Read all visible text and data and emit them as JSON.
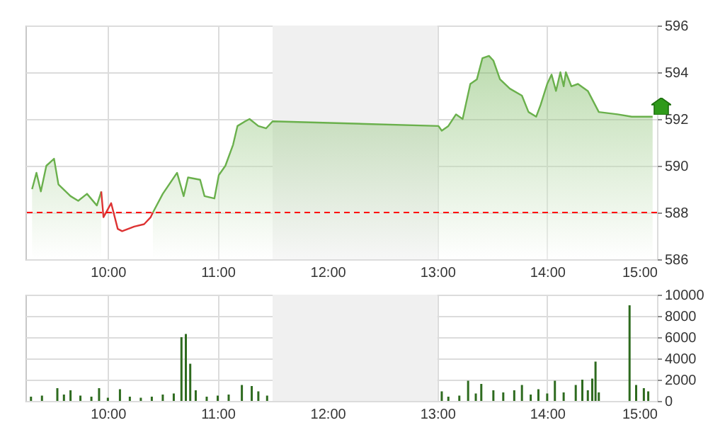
{
  "chart_data": [
    {
      "type": "line",
      "xlim": [
        9.25,
        15
      ],
      "xticks": [
        {
          "value": 10,
          "label": "10:00"
        },
        {
          "value": 11,
          "label": "11:00"
        },
        {
          "value": 12,
          "label": "12:00"
        },
        {
          "value": 13,
          "label": "13:00"
        },
        {
          "value": 14,
          "label": "14:00"
        },
        {
          "value": 15,
          "label": "15:00"
        }
      ],
      "ylim": [
        586,
        596
      ],
      "yticks": [
        586,
        588,
        590,
        592,
        594,
        596
      ],
      "grid": true,
      "bands": [
        {
          "axis": "x",
          "from": 11.5,
          "to": 13,
          "color": "#f0f0f0"
        }
      ],
      "ref_lines": [
        {
          "axis": "y",
          "value": 588,
          "color": "#ff0000",
          "line_style": "dashed"
        }
      ],
      "series": [
        {
          "type": "area",
          "color": "#6ab04c",
          "x": [
            9.31,
            9.35,
            9.39,
            9.44,
            9.51,
            9.55,
            9.66,
            9.73,
            9.81,
            9.9,
            9.94,
            10.0,
            10.41,
            10.5,
            10.63,
            10.69,
            10.73,
            10.84,
            10.88,
            10.97,
            11.01,
            11.07,
            11.14,
            11.18,
            11.25,
            11.29,
            11.37,
            11.44,
            11.5,
            13.01,
            13.04,
            13.1,
            13.17,
            13.23,
            13.3,
            13.36,
            13.41,
            13.47,
            13.51,
            13.57,
            13.66,
            13.77,
            13.83,
            13.9,
            13.94,
            14.0,
            14.04,
            14.08,
            14.12,
            14.15,
            14.17,
            14.22,
            14.28,
            14.37,
            14.47,
            14.64,
            14.77,
            14.88,
            14.96
          ],
          "values": [
            589.0,
            589.7,
            588.9,
            590.0,
            590.3,
            589.2,
            588.7,
            588.5,
            588.8,
            588.3,
            588.9,
            null,
            588.0,
            588.8,
            589.7,
            588.7,
            589.5,
            589.4,
            588.7,
            588.6,
            589.6,
            590.0,
            590.9,
            591.7,
            591.9,
            592.0,
            591.7,
            591.6,
            591.9,
            591.7,
            591.5,
            591.7,
            592.2,
            592.0,
            593.5,
            593.7,
            594.6,
            594.7,
            594.5,
            593.7,
            593.3,
            593.0,
            592.3,
            592.1,
            592.6,
            593.5,
            593.9,
            593.2,
            594.0,
            593.4,
            594.0,
            593.4,
            593.5,
            593.2,
            592.3,
            592.2,
            592.1,
            592.1,
            592.1
          ]
        },
        {
          "color": "#dd3333",
          "x": [
            9.94,
            9.96,
            10.03,
            10.09,
            10.13,
            10.24,
            10.33,
            10.39,
            10.41
          ],
          "values": [
            588.9,
            587.8,
            588.4,
            587.3,
            587.2,
            587.4,
            587.5,
            587.8,
            588.0
          ]
        }
      ]
    },
    {
      "type": "bar",
      "xlim": [
        9.25,
        15
      ],
      "xticks": [
        {
          "value": 10,
          "label": "10:00"
        },
        {
          "value": 11,
          "label": "11:00"
        },
        {
          "value": 12,
          "label": "12:00"
        },
        {
          "value": 13,
          "label": "13:00"
        },
        {
          "value": 14,
          "label": "14:00"
        },
        {
          "value": 15,
          "label": "15:00"
        }
      ],
      "ylim": [
        0,
        10000
      ],
      "yticks": [
        0,
        2000,
        4000,
        6000,
        8000,
        10000
      ],
      "grid": true,
      "bands": [
        {
          "axis": "x",
          "from": 11.5,
          "to": 13,
          "color": "#f0f0f0"
        }
      ],
      "x": [
        9.3,
        9.4,
        9.54,
        9.6,
        9.66,
        9.75,
        9.85,
        9.92,
        10.0,
        10.11,
        10.2,
        10.3,
        10.4,
        10.5,
        10.6,
        10.67,
        10.71,
        10.75,
        10.8,
        10.9,
        11.0,
        11.1,
        11.22,
        11.31,
        11.37,
        11.45,
        13.04,
        13.1,
        13.2,
        13.28,
        13.35,
        13.4,
        13.51,
        13.6,
        13.7,
        13.77,
        13.85,
        13.92,
        14.0,
        14.07,
        14.15,
        14.26,
        14.32,
        14.37,
        14.41,
        14.44,
        14.47,
        14.75,
        14.81,
        14.88,
        14.92
      ],
      "series": [
        {
          "color": "#2e6b1f",
          "values": [
            400,
            500,
            1200,
            600,
            1000,
            500,
            400,
            1200,
            300,
            1100,
            400,
            300,
            400,
            600,
            700,
            6000,
            6300,
            3500,
            1000,
            400,
            500,
            600,
            1500,
            1400,
            900,
            500,
            900,
            400,
            500,
            1900,
            700,
            1600,
            1000,
            800,
            1000,
            1500,
            600,
            1100,
            700,
            1900,
            800,
            1500,
            2000,
            1000,
            2100,
            3700,
            800,
            9000,
            1500,
            1200,
            900
          ]
        }
      ]
    }
  ]
}
